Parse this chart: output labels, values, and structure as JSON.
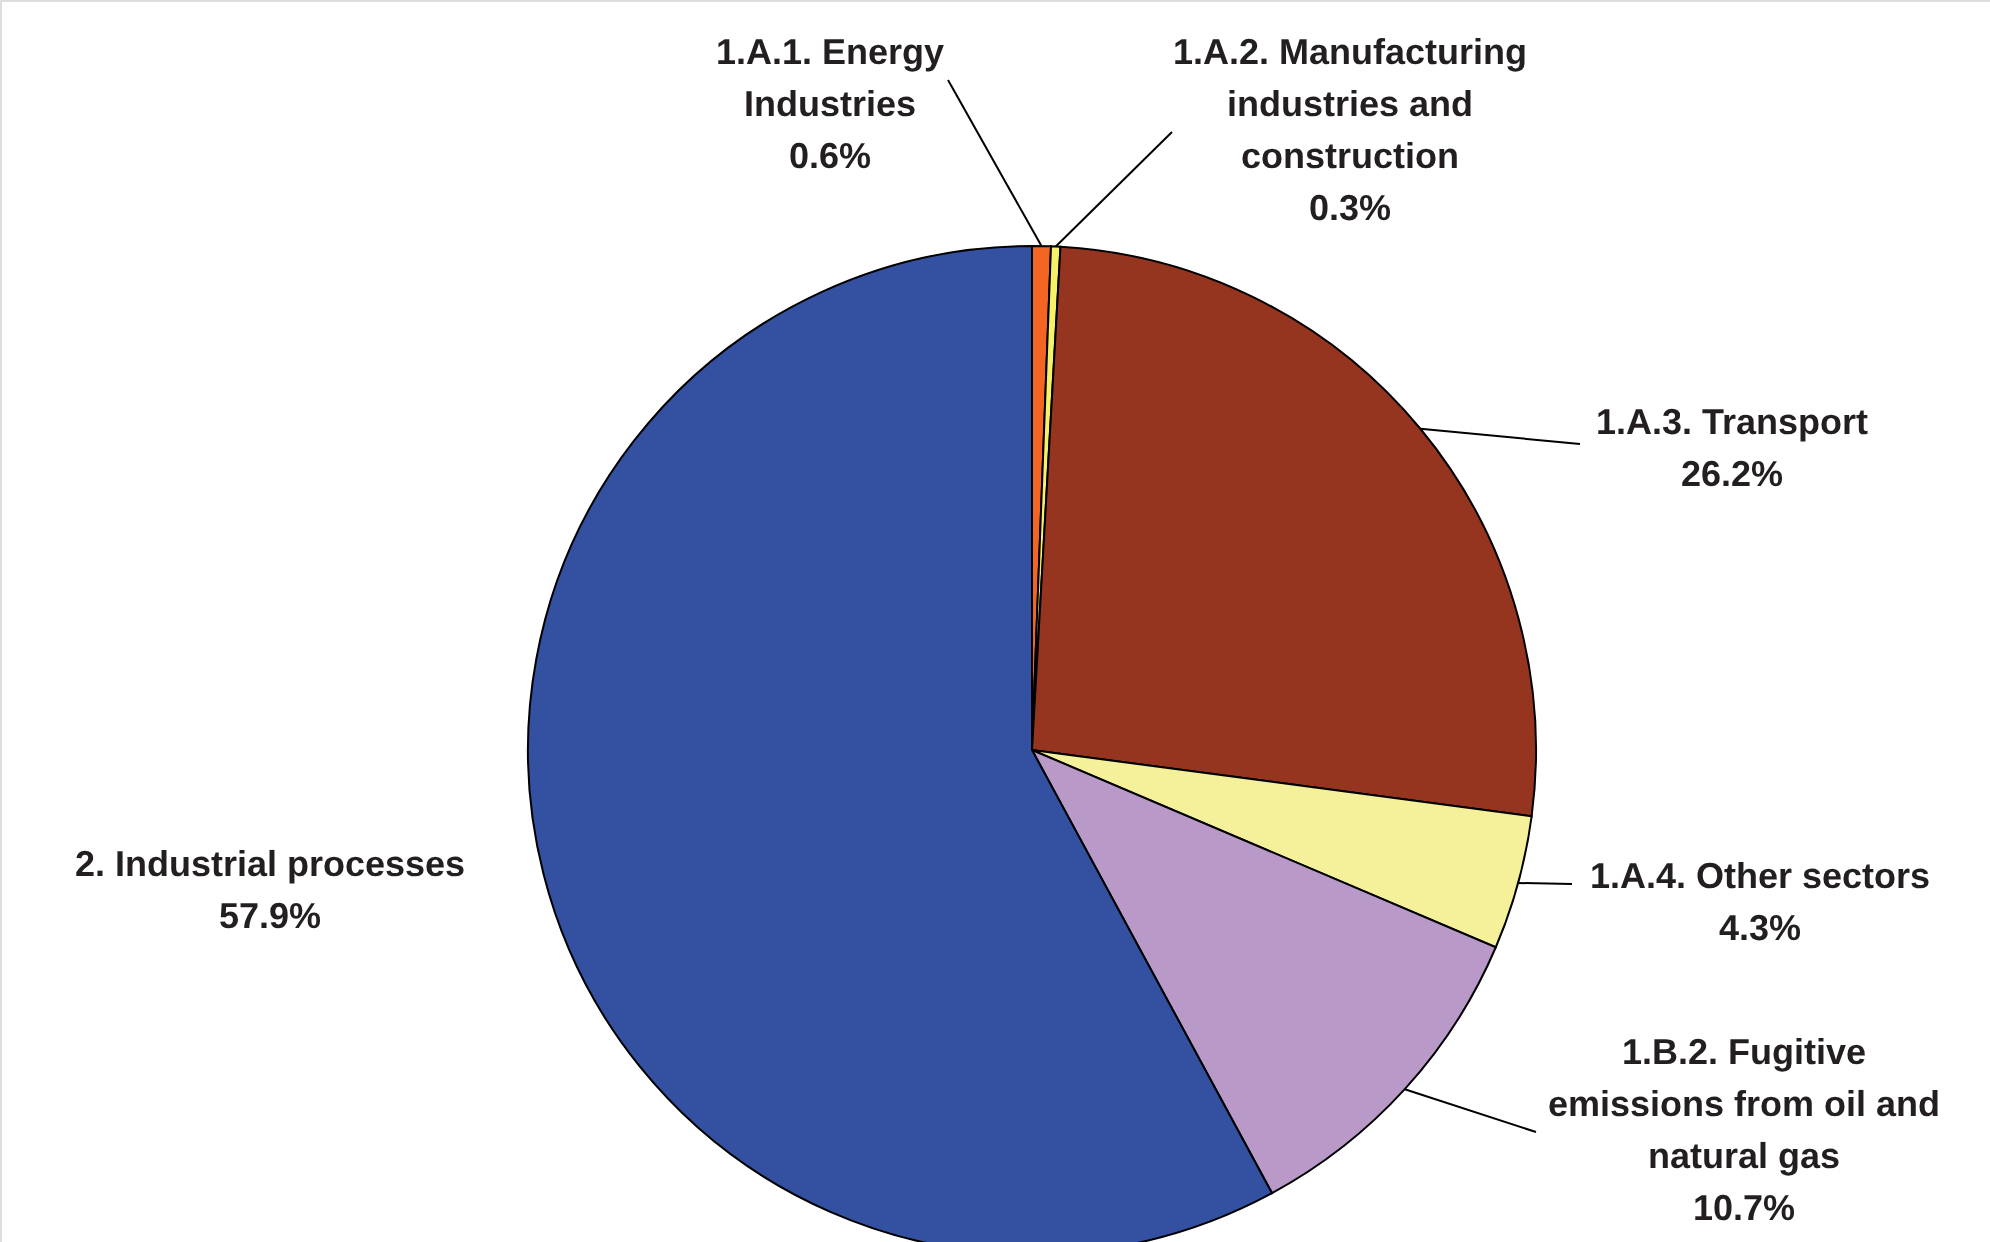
{
  "chart_data": {
    "type": "pie",
    "categories": [
      "1.A.1. Energy Industries",
      "1.A.2. Manufacturing industries and construction",
      "1.A.3. Transport",
      "1.A.4. Other sectors",
      "1.B.2. Fugitive emissions from oil and natural gas",
      "2. Industrial processes"
    ],
    "values": [
      0.6,
      0.3,
      26.2,
      4.3,
      10.7,
      57.9
    ],
    "value_labels": [
      "0.6%",
      "0.3%",
      "26.2%",
      "4.3%",
      "10.7%",
      "57.9%"
    ],
    "colors": [
      "#f26522",
      "#f5f26a",
      "#953520",
      "#f5f09a",
      "#b899c8",
      "#3450a0"
    ]
  }
}
